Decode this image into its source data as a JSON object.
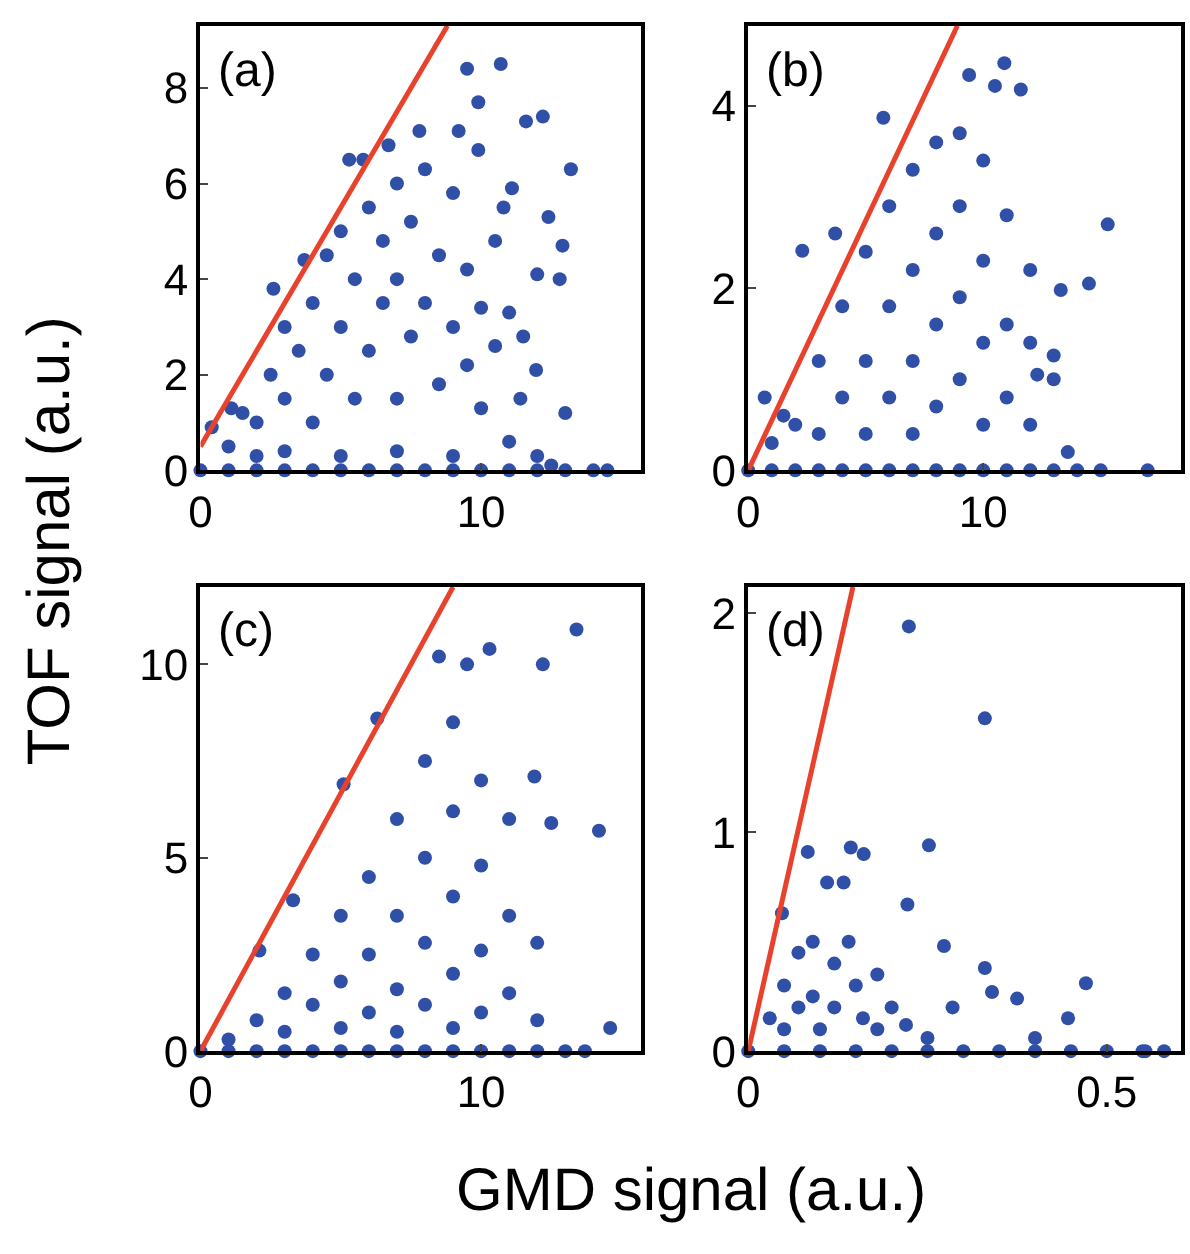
{
  "chart_data": [
    {
      "type": "scatter",
      "ylabel": "TOF signal (a.u.)",
      "annotations": [
        "(a)"
      ],
      "xlim": [
        0,
        15.7
      ],
      "ylim": [
        0,
        9.3
      ],
      "xticks": [
        0,
        10
      ],
      "yticks": [
        0,
        2,
        4,
        6,
        8
      ],
      "series": [
        {
          "marker": "circle",
          "color": "#3050a8",
          "x": [
            9.5,
            10.7,
            9.9,
            11.6,
            12.2,
            13.2,
            12.4,
            12.9,
            12.8,
            12.0,
            13.0,
            11.96,
            11.4,
            10.8,
            11.1,
            9.9,
            9.2,
            7.8,
            6.7,
            5.3,
            5.8,
            2.6,
            3.7,
            1.1,
            0.4,
            2,
            2.5,
            3,
            3,
            3.5,
            4,
            4,
            4.5,
            4.5,
            5,
            5,
            5.5,
            5.5,
            6,
            6,
            6.5,
            6.5,
            7,
            7,
            7,
            7.5,
            7.5,
            8,
            8,
            8.5,
            8.5,
            9,
            9,
            9.5,
            9.5,
            10,
            10,
            10.5,
            10.5,
            11,
            11,
            11.5,
            12,
            1,
            1.5,
            2,
            3,
            5,
            7,
            9,
            12.5,
            0,
            1,
            2,
            3,
            4,
            5,
            6,
            7,
            8,
            9,
            10,
            11,
            12,
            13,
            14,
            14.5
          ],
          "values": [
            8.4,
            8.5,
            7.7,
            7.3,
            7.4,
            6.3,
            5.3,
            4.7,
            4.0,
            4.1,
            1.2,
            2.1,
            1.5,
            5.5,
            5.9,
            6.7,
            7.1,
            7.1,
            6.8,
            6.5,
            6.5,
            3.8,
            4.4,
            1.3,
            0.9,
            1,
            2,
            1.5,
            3,
            2.5,
            1,
            3.5,
            2,
            4.5,
            3,
            5,
            1.5,
            4,
            2.5,
            5.5,
            3.5,
            4.8,
            1.5,
            4,
            6,
            2.8,
            5.2,
            3.5,
            6.3,
            1.8,
            4.5,
            3,
            5.8,
            2.2,
            4.2,
            1.3,
            3.4,
            2.6,
            4.8,
            0.6,
            3.3,
            2.8,
            0.3,
            0.5,
            1.2,
            0.3,
            0.4,
            0.3,
            0.4,
            0.3,
            0.1,
            0,
            0,
            0,
            0,
            0,
            0,
            0,
            0,
            0,
            0,
            0,
            0,
            0,
            0,
            0,
            0
          ]
        },
        {
          "type": "line",
          "color": "#e8412c",
          "x": [
            0,
            8.8
          ],
          "values": [
            0.5,
            9.3
          ]
        }
      ]
    },
    {
      "type": "scatter",
      "annotations": [
        "(b)"
      ],
      "xlim": [
        0,
        18.4
      ],
      "ylim": [
        0,
        4.88
      ],
      "xticks": [
        0,
        10
      ],
      "yticks": [
        0,
        2,
        4
      ],
      "series": [
        {
          "marker": "circle",
          "color": "#3050a8",
          "x": [
            10.9,
            9.4,
            10.5,
            11.6,
            5.75,
            15.3,
            14.5,
            13.3,
            2.3,
            3.7,
            0.7,
            13.6,
            17.0,
            12.3,
            13.0,
            2,
            3,
            3,
            4,
            4,
            5,
            5,
            5,
            6,
            6,
            6,
            7,
            7,
            7,
            7,
            8,
            8,
            8,
            8,
            9,
            9,
            9,
            9,
            10,
            10,
            10,
            10,
            11,
            11,
            11,
            12,
            12,
            12,
            13,
            1,
            1.5,
            0,
            1,
            2,
            3,
            4,
            5,
            6,
            7,
            8,
            9,
            10,
            11,
            12,
            13,
            14,
            15
          ],
          "values": [
            4.47,
            4.34,
            4.22,
            4.18,
            3.87,
            2.7,
            2.05,
            1.98,
            2.41,
            2.6,
            0.8,
            0.2,
            0,
            1.05,
            1.26,
            0.5,
            1.2,
            0.4,
            1.8,
            0.8,
            2.4,
            1.2,
            0.4,
            2.9,
            1.8,
            0.8,
            3.3,
            2.2,
            1.2,
            0.4,
            3.6,
            2.6,
            1.6,
            0.7,
            3.7,
            2.9,
            1.9,
            1.0,
            3.4,
            2.3,
            1.4,
            0.5,
            2.8,
            1.6,
            0.8,
            2.2,
            1.4,
            0.5,
            1.0,
            0.3,
            0.6,
            0,
            0,
            0,
            0,
            0,
            0,
            0,
            0,
            0,
            0,
            0,
            0,
            0,
            0,
            0,
            0
          ]
        },
        {
          "type": "line",
          "color": "#e8412c",
          "x": [
            0,
            8.9
          ],
          "values": [
            0,
            4.88
          ]
        }
      ]
    },
    {
      "type": "scatter",
      "xlabel": "GMD signal (a.u.)",
      "annotations": [
        "(c)"
      ],
      "xlim": [
        0,
        15.7
      ],
      "ylim": [
        0,
        12.0
      ],
      "xticks": [
        0,
        10
      ],
      "yticks": [
        0,
        5,
        10
      ],
      "series": [
        {
          "marker": "circle",
          "color": "#3050a8",
          "x": [
            13.4,
            12.2,
            10.3,
            8.5,
            9.5,
            14.2,
            14.6,
            6.3,
            5.1,
            11.9,
            12.5,
            3.3,
            2.1,
            13.7,
            2,
            3,
            3,
            4,
            4,
            5,
            5,
            5,
            6,
            6,
            6,
            7,
            7,
            7,
            7,
            8,
            8,
            8,
            8,
            9,
            9,
            9,
            9,
            9,
            10,
            10,
            10,
            10,
            11,
            11,
            11,
            12,
            12,
            1,
            0,
            1,
            2,
            3,
            4,
            5,
            6,
            7,
            8,
            9,
            10,
            11,
            12,
            13
          ],
          "values": [
            10.9,
            10.0,
            10.4,
            10.2,
            10.0,
            5.7,
            0.6,
            8.6,
            6.9,
            7.1,
            5.9,
            3.9,
            2.6,
            0,
            0.8,
            1.5,
            0.5,
            2.5,
            1.2,
            3.5,
            1.8,
            0.6,
            4.5,
            2.5,
            1.0,
            6.0,
            3.5,
            1.6,
            0.5,
            7.5,
            5.0,
            2.8,
            1.2,
            8.5,
            6.2,
            4.0,
            2.0,
            0.6,
            7.0,
            4.8,
            2.6,
            1.0,
            6.0,
            3.5,
            1.5,
            2.8,
            0.8,
            0.3,
            0,
            0,
            0,
            0,
            0,
            0,
            0,
            0,
            0,
            0,
            0,
            0,
            0,
            0
          ]
        },
        {
          "type": "line",
          "color": "#e8412c",
          "x": [
            0,
            9.0
          ],
          "values": [
            0,
            12.0
          ]
        }
      ]
    },
    {
      "type": "scatter",
      "annotations": [
        "(d)"
      ],
      "xlim": [
        0,
        0.603
      ],
      "ylim": [
        0,
        2.12
      ],
      "xticks": [
        0,
        0.5
      ],
      "yticks": [
        0,
        1,
        2
      ],
      "series": [
        {
          "marker": "circle",
          "color": "#3050a8",
          "x": [
            0.224,
            0.33,
            0.252,
            0.083,
            0.143,
            0.161,
            0.222,
            0.273,
            0.33,
            0.34,
            0.375,
            0.471,
            0.446,
            0.285,
            0.4,
            0.554,
            0.047,
            0.11,
            0.133,
            0.03,
            0.05,
            0.05,
            0.07,
            0.07,
            0.09,
            0.09,
            0.1,
            0.12,
            0.12,
            0.14,
            0.15,
            0.16,
            0.18,
            0.18,
            0.2,
            0.22,
            0.25,
            0,
            0.05,
            0.1,
            0.15,
            0.2,
            0.25,
            0.3,
            0.35,
            0.4,
            0.45,
            0.5,
            0.55,
            0.58
          ],
          "values": [
            1.94,
            1.52,
            0.94,
            0.91,
            0.93,
            0.9,
            0.67,
            0.48,
            0.38,
            0.27,
            0.24,
            0.31,
            0.15,
            0.2,
            0.06,
            0,
            0.63,
            0.77,
            0.77,
            0.15,
            0.3,
            0.1,
            0.45,
            0.2,
            0.5,
            0.25,
            0.1,
            0.4,
            0.2,
            0.5,
            0.3,
            0.15,
            0.35,
            0.1,
            0.2,
            0.12,
            0.06,
            0,
            0,
            0,
            0,
            0,
            0,
            0,
            0,
            0,
            0,
            0,
            0,
            0
          ]
        },
        {
          "type": "line",
          "color": "#e8412c",
          "x": [
            0,
            0.146
          ],
          "values": [
            0,
            2.12
          ]
        }
      ]
    }
  ]
}
